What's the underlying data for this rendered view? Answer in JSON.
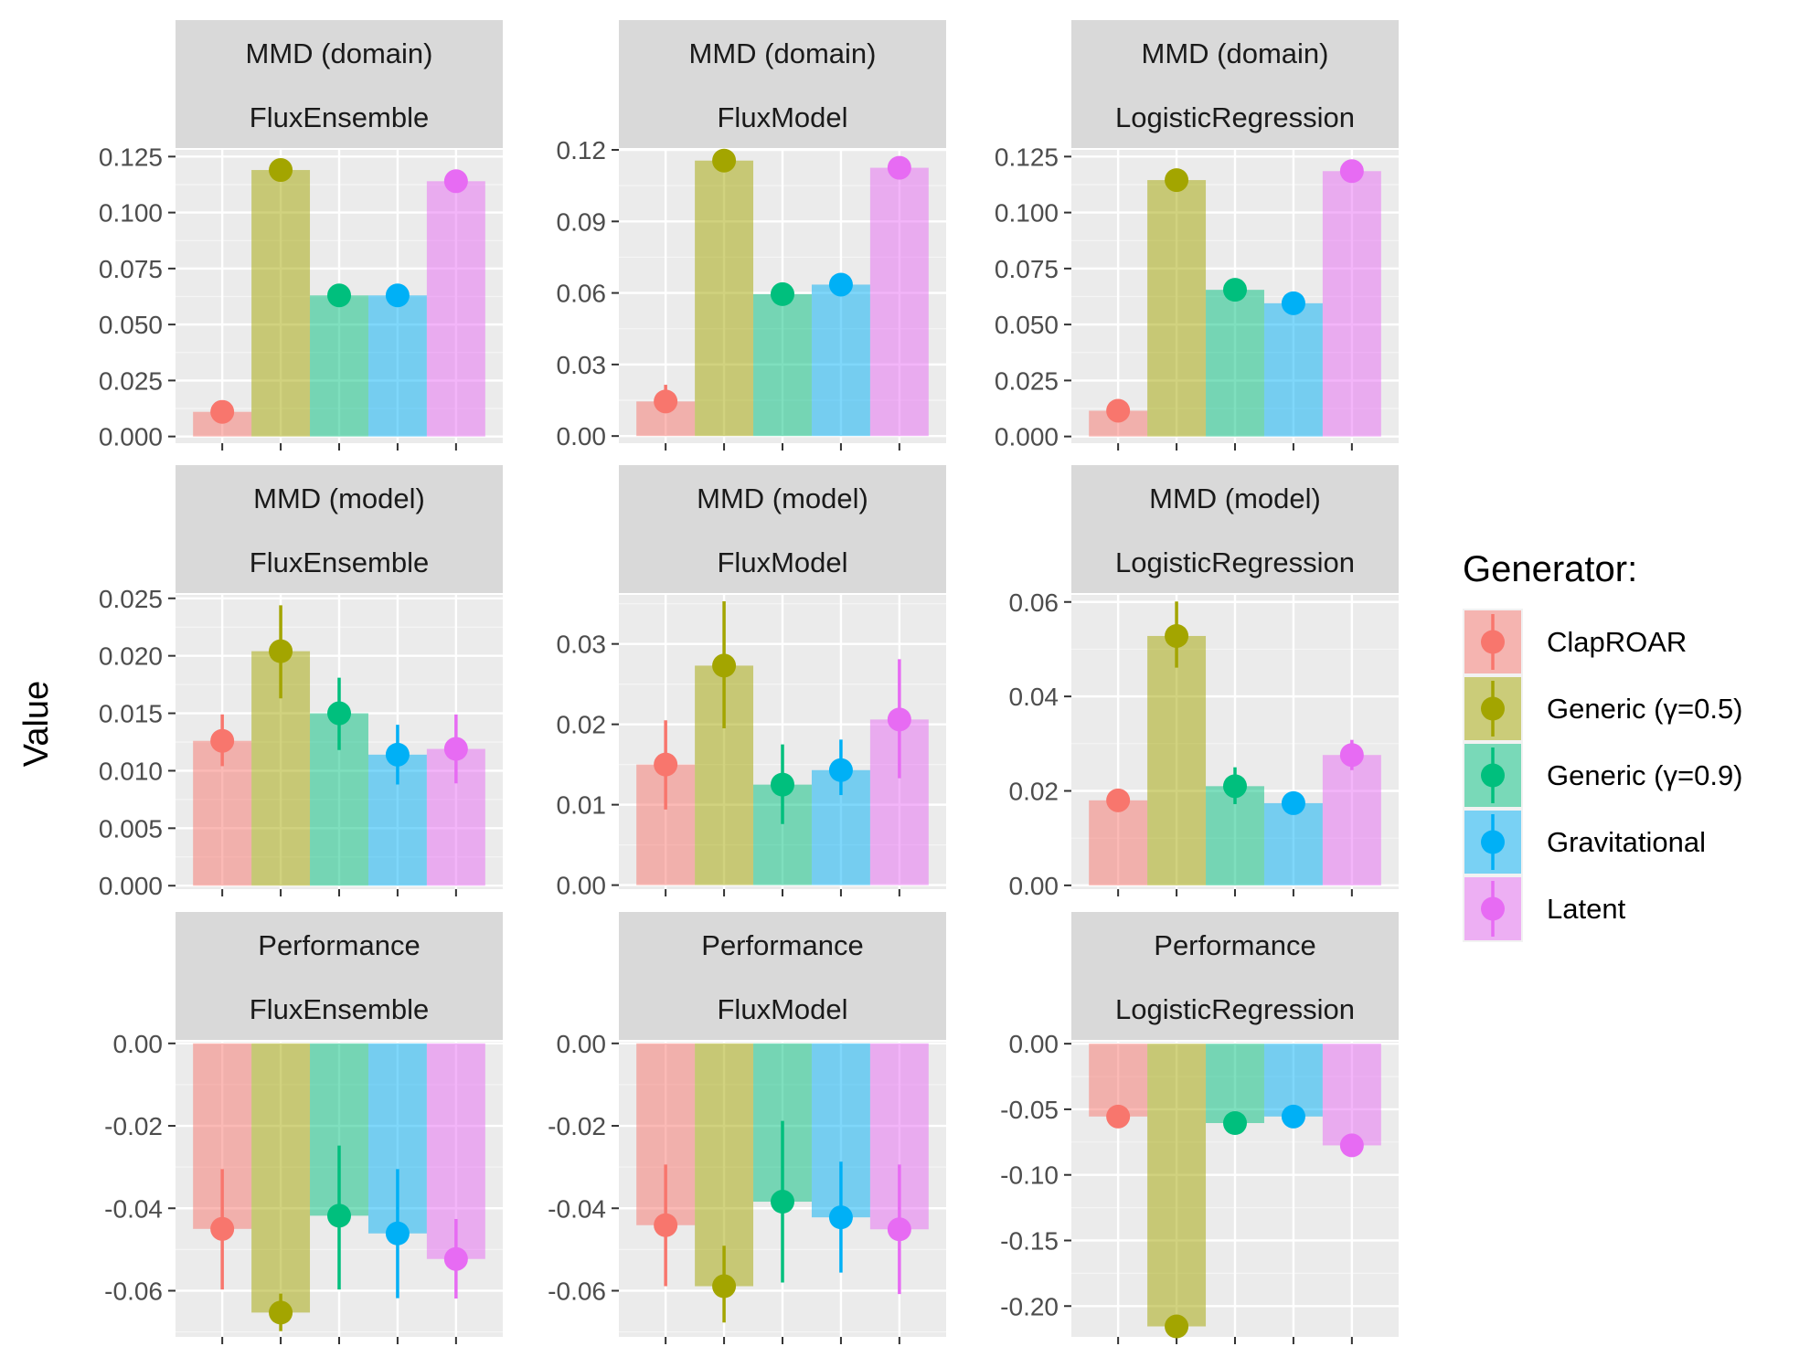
{
  "chart_data": {
    "type": "bar",
    "ylabel": "Value",
    "legend": {
      "title": "Generator:",
      "position": "right",
      "entries": [
        "ClapROAR",
        "Generic (γ=0.5)",
        "Generic (γ=0.9)",
        "Gravitational",
        "Latent"
      ]
    },
    "colors": [
      "#F8766D",
      "#A3A500",
      "#00BF7D",
      "#00B0F6",
      "#E76BF3"
    ],
    "grid": true,
    "rows": [
      "MMD (domain)",
      "MMD (model)",
      "Performance"
    ],
    "cols": [
      "FluxEnsemble",
      "FluxModel",
      "LogisticRegression"
    ],
    "panels": [
      {
        "metric": "MMD (domain)",
        "model": "FluxEnsemble",
        "ylim": [
          -0.003,
          0.128
        ],
        "ticks": [
          "0.000",
          "0.025",
          "0.050",
          "0.075",
          "0.100",
          "0.125"
        ],
        "values": [
          0.011,
          0.119,
          0.063,
          0.063,
          0.114
        ],
        "err_low": [
          0.01,
          0.117,
          0.062,
          0.062,
          0.113
        ],
        "err_high": [
          0.012,
          0.121,
          0.064,
          0.064,
          0.115
        ]
      },
      {
        "metric": "MMD (domain)",
        "model": "FluxModel",
        "ylim": [
          -0.003,
          0.12
        ],
        "ticks": [
          "0.00",
          "0.03",
          "0.06",
          "0.09",
          "0.12"
        ],
        "values": [
          0.0145,
          0.1155,
          0.0595,
          0.0635,
          0.1125
        ],
        "err_low": [
          0.01,
          0.114,
          0.058,
          0.062,
          0.111
        ],
        "err_high": [
          0.0215,
          0.117,
          0.061,
          0.065,
          0.114
        ]
      },
      {
        "metric": "MMD (domain)",
        "model": "LogisticRegression",
        "ylim": [
          -0.003,
          0.128
        ],
        "ticks": [
          "0.000",
          "0.025",
          "0.050",
          "0.075",
          "0.100",
          "0.125"
        ],
        "values": [
          0.0115,
          0.1145,
          0.0655,
          0.0595,
          0.1185
        ],
        "err_low": [
          0.0105,
          0.1135,
          0.0645,
          0.0585,
          0.1175
        ],
        "err_high": [
          0.0125,
          0.1155,
          0.0665,
          0.0605,
          0.1195
        ]
      },
      {
        "metric": "MMD (model)",
        "model": "FluxEnsemble",
        "ylim": [
          -0.0003,
          0.0253
        ],
        "ticks": [
          "0.000",
          "0.005",
          "0.010",
          "0.015",
          "0.020",
          "0.025"
        ],
        "values": [
          0.0126,
          0.0204,
          0.015,
          0.0114,
          0.0119
        ],
        "err_low": [
          0.0104,
          0.0163,
          0.0118,
          0.0088,
          0.0089
        ],
        "err_high": [
          0.0149,
          0.0244,
          0.0181,
          0.014,
          0.0149
        ]
      },
      {
        "metric": "MMD (model)",
        "model": "FluxModel",
        "ylim": [
          -0.0005,
          0.0361
        ],
        "ticks": [
          "0.00",
          "0.01",
          "0.02",
          "0.03"
        ],
        "values": [
          0.015,
          0.0273,
          0.0125,
          0.0143,
          0.0206
        ],
        "err_low": [
          0.0094,
          0.0195,
          0.0076,
          0.0112,
          0.0133
        ],
        "err_high": [
          0.0205,
          0.0353,
          0.0175,
          0.0181,
          0.0281
        ]
      },
      {
        "metric": "MMD (model)",
        "model": "LogisticRegression",
        "ylim": [
          -0.0008,
          0.0615
        ],
        "ticks": [
          "0.00",
          "0.02",
          "0.04",
          "0.06"
        ],
        "values": [
          0.018,
          0.0528,
          0.021,
          0.0174,
          0.0276
        ],
        "err_low": [
          0.017,
          0.0461,
          0.0172,
          0.0162,
          0.0244
        ],
        "err_high": [
          0.019,
          0.0601,
          0.025,
          0.0186,
          0.0308
        ]
      },
      {
        "metric": "Performance",
        "model": "FluxEnsemble",
        "ylim": [
          -0.0712,
          0.0004
        ],
        "ticks": [
          "0.00",
          "-0.02",
          "-0.04",
          "-0.06"
        ],
        "values": [
          -0.045,
          -0.0653,
          -0.0418,
          -0.0461,
          -0.0523
        ],
        "err_low": [
          -0.0597,
          -0.0698,
          -0.0597,
          -0.0618,
          -0.0619
        ],
        "err_high": [
          -0.0305,
          -0.0607,
          -0.0248,
          -0.0305,
          -0.0426
        ]
      },
      {
        "metric": "Performance",
        "model": "FluxModel",
        "ylim": [
          -0.0712,
          0.0004
        ],
        "ticks": [
          "0.00",
          "-0.02",
          "-0.04",
          "-0.06"
        ],
        "values": [
          -0.0441,
          -0.0589,
          -0.0384,
          -0.0422,
          -0.0451
        ],
        "err_low": [
          -0.0589,
          -0.0677,
          -0.058,
          -0.0556,
          -0.0608
        ],
        "err_high": [
          -0.0294,
          -0.0491,
          -0.0188,
          -0.0287,
          -0.0294
        ]
      },
      {
        "metric": "Performance",
        "model": "LogisticRegression",
        "ylim": [
          -0.2235,
          0.0015
        ],
        "ticks": [
          "0.00",
          "-0.05",
          "-0.10",
          "-0.15",
          "-0.20"
        ],
        "values": [
          -0.0555,
          -0.2155,
          -0.0605,
          -0.0555,
          -0.0775
        ],
        "err_low": [
          -0.0575,
          -0.2185,
          -0.0625,
          -0.0575,
          -0.0795
        ],
        "err_high": [
          -0.0535,
          -0.2125,
          -0.0585,
          -0.0535,
          -0.0755
        ]
      }
    ]
  }
}
